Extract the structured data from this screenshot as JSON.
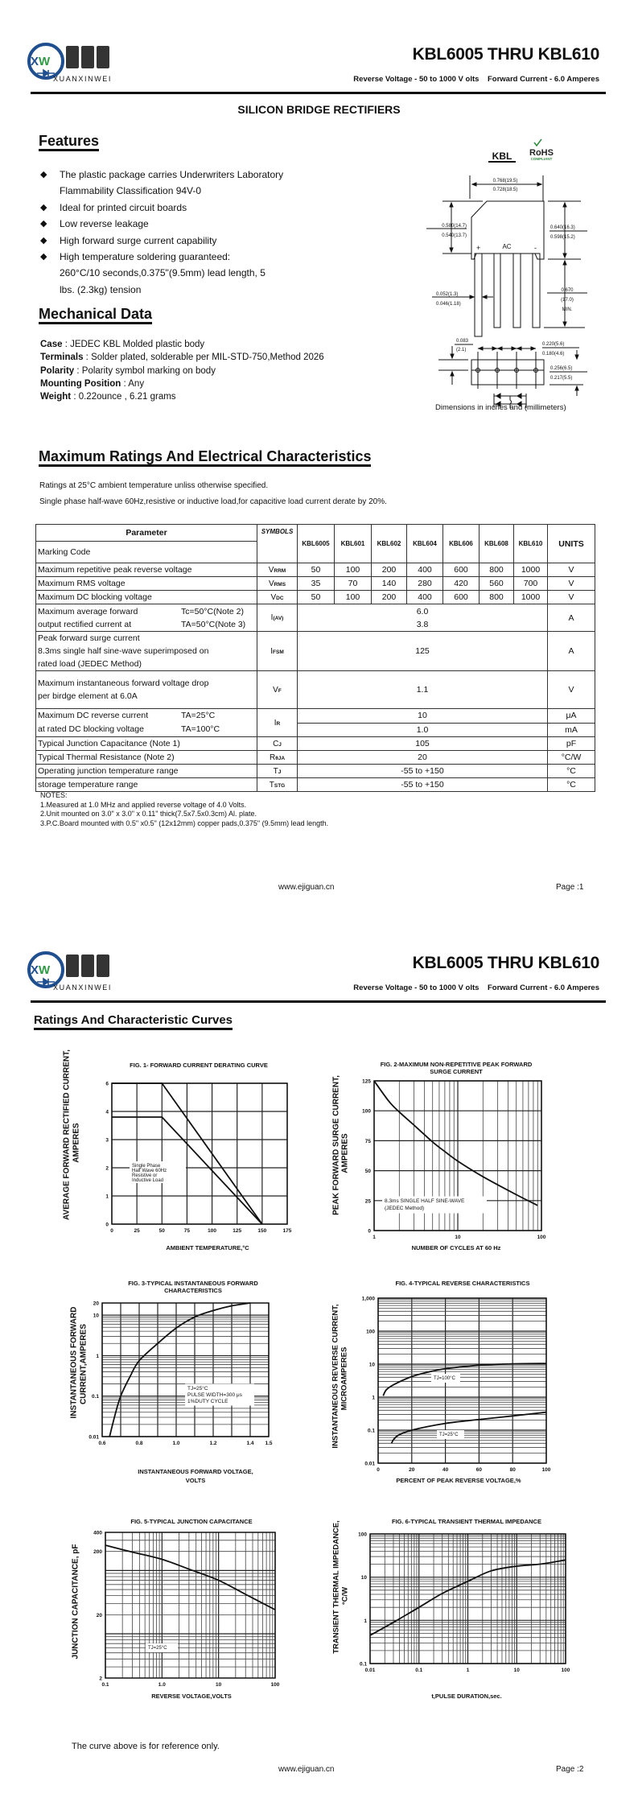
{
  "logo": {
    "mark": "XW",
    "chinese": "烜芯微",
    "latin": "XUANXINWEI",
    "navy": "#1f4f8f",
    "green": "#2f9a45"
  },
  "header": {
    "title": "KBL6005 THRU KBL610",
    "subtitle": "Reverse Voltage - 50 to 1000 V olts    Forward Current - 6.0 Amperes"
  },
  "page1": {
    "heading": "SILICON BRIDGE RECTIFIERS",
    "features": {
      "title": "Features",
      "items": [
        [
          "The plastic package carries Underwriters Laboratory",
          "Flammability Classification 94V-0"
        ],
        [
          "Ideal for printed circuit boards"
        ],
        [
          "Low reverse leakage"
        ],
        [
          "High forward surge current capability"
        ],
        [
          "High temperature soldering guaranteed:",
          "260°C/10 seconds,0.375\"(9.5mm) lead length, 5",
          "lbs. (2.3kg) tension"
        ]
      ]
    },
    "mechanical": {
      "title": "Mechanical Data",
      "items": [
        {
          "label": "Case",
          "text": " : JEDEC KBL Molded plastic body"
        },
        {
          "label": "Terminals",
          "text": " : Solder plated, solderable per MIL-STD-750,Method 2026"
        },
        {
          "label": "Polarity",
          "text": " : Polarity symbol  marking on body"
        },
        {
          "label": "Mounting Position",
          "text": " : Any"
        },
        {
          "label": "Weight",
          "text": " : 0.22ounce , 6.21 grams"
        }
      ]
    },
    "package": {
      "name": "KBL",
      "rohs": "RoHS",
      "rohs_sub": "COMPLIANT",
      "rohs_color": "#2f8a3e",
      "dims": {
        "width_max": "0.768(19.5)",
        "width_min": "0.728(18.5)",
        "left_max": "0.580(14.7)",
        "left_min": "0.540(13.7)",
        "right_max": "0.640(16.3)",
        "right_min": "0.598(15.2)",
        "lead_len": "0.670",
        "lead_len_mm": "(17.0)",
        "lead_len_min": "MIN.",
        "lead_w_max": "0.052(1.3)",
        "lead_w_min": "0.046(1.18)",
        "offset": "0.083",
        "offset_mm": "(2.1)",
        "pitch_max": "0.220(5.6)",
        "pitch_min": "0.180(4.6)",
        "thick_max": "0.256(6.5)",
        "thick_min": "0.217(5.5)",
        "plus": "+",
        "ac": "AC",
        "minus": "-"
      },
      "caption": "Dimensions in inches and (millimeters)"
    },
    "ratings": {
      "title": "Maximum Ratings And Electrical Characteristics",
      "note1": "Ratings at 25°C ambient temperature unliss otherwise specified.",
      "note2": "Single phase half-wave 60Hz,resistive or inductive load,for capacitive load current derate by 20%."
    },
    "table": {
      "header": {
        "parameter": "Parameter",
        "marking": "Marking Code",
        "symbols": "SYMBOLS",
        "units": "UNITS",
        "models": [
          "KBL6005",
          "KBL601",
          "KBL602",
          "KBL604",
          "KBL606",
          "KBL608",
          "KBL610"
        ]
      },
      "rows": [
        {
          "type": "values",
          "lines": [
            {
              "text": "Maximum repetitive peak reverse voltage"
            }
          ],
          "sym": "V",
          "sub": "RRM",
          "values": [
            "50",
            "100",
            "200",
            "400",
            "600",
            "800",
            "1000"
          ],
          "unit": "V"
        },
        {
          "type": "values",
          "lines": [
            {
              "text": "Maximum RMS voltage"
            }
          ],
          "sym": "V",
          "sub": "RMS",
          "values": [
            "35",
            "70",
            "140",
            "280",
            "420",
            "560",
            "700"
          ],
          "unit": "V"
        },
        {
          "type": "values",
          "lines": [
            {
              "text": "Maximum DC blocking voltage"
            }
          ],
          "sym": "V",
          "sub": "DC",
          "values": [
            "50",
            "100",
            "200",
            "400",
            "600",
            "800",
            "1000"
          ],
          "unit": "V"
        },
        {
          "type": "merged",
          "lines": [
            {
              "text": "Maximum average forward",
              "cond": "Tc=50°C(Note 2)"
            },
            {
              "text": "output rectified current at",
              "cond": "TA=50°C(Note 3)"
            }
          ],
          "sym": "I",
          "sub": "(AV)",
          "merged": [
            "6.0",
            "3.8"
          ],
          "unit": "A"
        },
        {
          "type": "merged",
          "lines": [
            {
              "text": "Peak forward surge current"
            },
            {
              "text": "8.3ms single half sine-wave superimposed on"
            },
            {
              "text": "rated load (JEDEC Method)"
            }
          ],
          "sym": "I",
          "sub": "FSM",
          "merged": [
            "125"
          ],
          "unit": "A"
        },
        {
          "type": "merged",
          "lines": [
            {
              "text": "Maximum instantaneous forward voltage drop"
            },
            {
              "text": "per birdge element at 6.0A"
            }
          ],
          "sym": "V",
          "sub": "F",
          "merged": [
            "1.1"
          ],
          "unit": "V"
        },
        {
          "type": "split",
          "lines": [
            {
              "text": "Maximum DC reverse current",
              "cond": "TA=25°C"
            },
            {
              "text": "at rated DC blocking voltage",
              "cond": "TA=100°C"
            }
          ],
          "sym": "I",
          "sub": "R",
          "split": [
            "10",
            "1.0"
          ],
          "units": [
            "μA",
            "mA"
          ]
        },
        {
          "type": "merged",
          "lines": [
            {
              "text": "Typical Junction Capacitance (Note 1)"
            }
          ],
          "sym": "C",
          "sub": "J",
          "merged": [
            "105"
          ],
          "unit": "pF"
        },
        {
          "type": "merged",
          "lines": [
            {
              "text": "Typical Thermal Resistance (Note 2)"
            }
          ],
          "sym": "R",
          "sub": "θJA",
          "merged": [
            "20"
          ],
          "unit": "°C/W"
        },
        {
          "type": "merged",
          "lines": [
            {
              "text": "Operating junction temperature range"
            }
          ],
          "sym": "T",
          "sub": "J",
          "merged": [
            "-55 to +150"
          ],
          "unit": "°C"
        },
        {
          "type": "merged",
          "lines": [
            {
              "text": "storage temperature range"
            }
          ],
          "sym": "T",
          "sub": "STG",
          "merged": [
            "-55 to +150"
          ],
          "unit": "°C"
        }
      ]
    },
    "notes": [
      "NOTES:",
      "1.Measured at 1.0 MHz and applied reverse voltage of 4.0 Volts.",
      "2.Unit mounted on 3.0\"  x 3.0\"  x 0.11\"  thick(7.5x7.5x0.3cm) Al. plate.",
      "3.P.C.Board mounted with 0.5\"  x0.5\" (12x12mm) copper pads,0.375\" (9.5mm) lead length."
    ],
    "footer": {
      "url": "www.ejiguan.cn",
      "page": "Page :1"
    }
  },
  "page2": {
    "heading": "Ratings And Characteristic Curves",
    "disclaimer": "The curve above is for reference only.",
    "footer": {
      "url": "www.ejiguan.cn",
      "page": "Page :2"
    }
  },
  "chart_data": [
    {
      "type": "line",
      "title": [
        "FIG. 1- FORWARD CURRENT DERATING CURVE"
      ],
      "xlabel": [
        "AMBIENT TEMPERATURE,°C"
      ],
      "ylabel": [
        "AVERAGE FORWARD RECTIFIED CURRENT,",
        "AMPERES"
      ],
      "xscale": "linear",
      "yscale": "linear",
      "xlim": [
        0,
        175
      ],
      "ylim": [
        0,
        6
      ],
      "xticks": [
        "0",
        "25",
        "50",
        "75",
        "100",
        "125",
        "150",
        "175"
      ],
      "yticks": [
        "0",
        "1",
        "2",
        "3",
        "4",
        "6"
      ],
      "grid": true,
      "series": [
        {
          "x": [
            0,
            50,
            150
          ],
          "y": [
            6,
            6,
            0
          ]
        },
        {
          "x": [
            0,
            50,
            150
          ],
          "y": [
            3.8,
            3.8,
            0
          ]
        }
      ],
      "annotations": [
        [
          "Single Phase",
          "Half Wave 60Hz",
          "Resistive or",
          "Inductive Load"
        ]
      ]
    },
    {
      "type": "line",
      "title": [
        "FIG. 2-MAXIMUM NON-REPETITIVE PEAK FORWARD",
        "SURGE CURRENT"
      ],
      "xlabel": [
        "NUMBER OF CYCLES AT 60 Hz"
      ],
      "ylabel": [
        "PEAK  FORWARD SURGE CURRENT,",
        "AMPERES"
      ],
      "xscale": "log",
      "yscale": "linear",
      "xlim": [
        1,
        100
      ],
      "ylim": [
        0,
        125
      ],
      "xticks": [
        "1",
        "10",
        "100"
      ],
      "yticks": [
        "0",
        "25",
        "50",
        "75",
        "100",
        "125"
      ],
      "grid": true,
      "series": [
        {
          "x": [
            1,
            1.5,
            2,
            3,
            5,
            7,
            10,
            20,
            50,
            90
          ],
          "y": [
            125,
            108,
            99,
            88,
            74,
            66,
            58,
            45,
            30,
            21
          ]
        }
      ],
      "annotations": [
        [
          "8.3ms SINGLE HALF SINE-WAVE",
          "(JEDEC Method)"
        ]
      ]
    },
    {
      "type": "line",
      "title": [
        "FIG. 3-TYPICAL INSTANTANEOUS FORWARD",
        "CHARACTERISTICS"
      ],
      "xlabel": [
        "INSTANTANEOUS FORWARD VOLTAGE,",
        "VOLTS"
      ],
      "ylabel": [
        "INSTANTANEOUS FORWARD",
        "CURRENT,AMPERES"
      ],
      "xscale": "linear",
      "yscale": "log",
      "xlim": [
        0.6,
        1.5
      ],
      "ylim": [
        0.01,
        20
      ],
      "xticks": [
        "0.6",
        "0.8",
        "1.0",
        "1.2",
        "1.4",
        "1.5"
      ],
      "xgrid": [
        0.6,
        0.7,
        0.8,
        0.9,
        1.0,
        1.1,
        1.2,
        1.3,
        1.4,
        1.5
      ],
      "yticks": [
        "0.01",
        "0.1",
        "1",
        "10",
        "20"
      ],
      "grid": true,
      "series": [
        {
          "x": [
            0.64,
            0.67,
            0.7,
            0.75,
            0.8,
            0.9,
            1.0,
            1.1,
            1.2,
            1.3,
            1.4
          ],
          "y": [
            0.01,
            0.035,
            0.1,
            0.3,
            0.75,
            2,
            4.8,
            9,
            13,
            17,
            20
          ]
        }
      ],
      "annotations": [
        [
          "TJ=25°C",
          "PULSE WIDTH=300 μs",
          "1%DUTY CYCLE"
        ]
      ]
    },
    {
      "type": "line",
      "title": [
        "FIG. 4-TYPICAL REVERSE CHARACTERISTICS"
      ],
      "xlabel": [
        "PERCENT OF PEAK REVERSE VOLTAGE,%"
      ],
      "ylabel": [
        "INSTANTANEOUS REVERSE CURRENT,",
        "MICROAMPERES"
      ],
      "xscale": "linear",
      "yscale": "log",
      "xlim": [
        0,
        100
      ],
      "ylim": [
        0.01,
        1000
      ],
      "xticks": [
        "0",
        "20",
        "40",
        "60",
        "80",
        "100"
      ],
      "yticks": [
        "0.01",
        "0.1",
        "1",
        "10",
        "100",
        "1,000"
      ],
      "grid": true,
      "series": [
        {
          "name": "TJ=100°C",
          "x": [
            3,
            5,
            10,
            20,
            30,
            40,
            60,
            80,
            100
          ],
          "y": [
            1.1,
            1.7,
            2.5,
            4.2,
            5.8,
            7.3,
            9.3,
            10.2,
            10.5
          ]
        },
        {
          "name": "TJ=25°C",
          "x": [
            8,
            9,
            12,
            20,
            40,
            60,
            80,
            100
          ],
          "y": [
            0.04,
            0.05,
            0.07,
            0.1,
            0.16,
            0.21,
            0.27,
            0.35
          ]
        }
      ],
      "annotations": [
        [
          "TJ=100°C"
        ],
        [
          "TJ=25°C"
        ]
      ]
    },
    {
      "type": "line",
      "title": [
        "FIG. 5-TYPICAL JUNCTION CAPACITANCE"
      ],
      "xlabel": [
        "REVERSE VOLTAGE,VOLTS"
      ],
      "ylabel": [
        "JUNCTION CAPACITANCE, pF"
      ],
      "xscale": "log",
      "yscale": "log",
      "xlim": [
        0.1,
        100
      ],
      "ylim": [
        2,
        400
      ],
      "xticks": [
        "0.1",
        "1.0",
        "10",
        "100"
      ],
      "yticks": [
        "2",
        "20",
        "200",
        "400"
      ],
      "grid": true,
      "series": [
        {
          "x": [
            0.1,
            0.3,
            1,
            3,
            10,
            30,
            100
          ],
          "y": [
            250,
            195,
            150,
            105,
            70,
            42,
            24
          ]
        }
      ],
      "annotations": [
        [
          "TJ=25°C"
        ]
      ]
    },
    {
      "type": "line",
      "title": [
        "FIG. 6-TYPICAL TRANSIENT THERMAL IMPEDANCE"
      ],
      "xlabel": [
        "t,PULSE DURATION,sec."
      ],
      "ylabel": [
        "TRANSIENT THERMAL IMPEDANCE,",
        "°C/W"
      ],
      "xscale": "log",
      "yscale": "log",
      "xlim": [
        0.01,
        100
      ],
      "ylim": [
        0.1,
        100
      ],
      "xticks": [
        "0.01",
        "0.1",
        "1",
        "10",
        "100"
      ],
      "yticks": [
        "0.1",
        "1",
        "10",
        "100"
      ],
      "grid": true,
      "series": [
        {
          "x": [
            0.01,
            0.03,
            0.1,
            0.3,
            1,
            3,
            10,
            30,
            100
          ],
          "y": [
            0.45,
            0.9,
            2,
            4.2,
            8,
            14,
            18,
            20,
            25
          ]
        }
      ],
      "annotations": []
    }
  ]
}
